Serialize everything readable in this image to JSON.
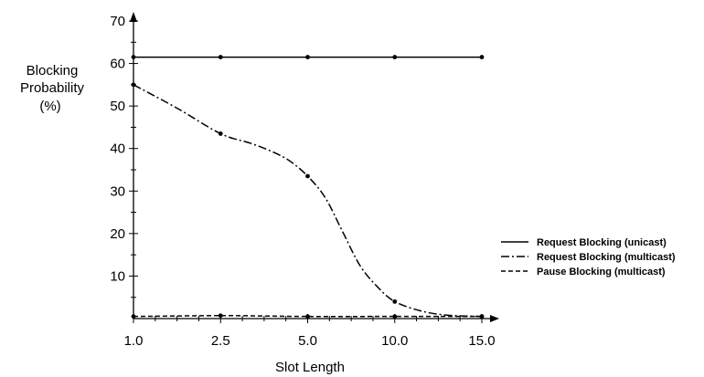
{
  "chart_data": {
    "type": "line",
    "ylabel_lines": [
      "Blocking",
      "Probability",
      "(%)"
    ],
    "xlabel": "Slot Length",
    "categories": [
      "1.0",
      "2.5",
      "5.0",
      "10.0",
      "15.0"
    ],
    "x_positions": [
      0,
      1,
      2,
      3,
      4
    ],
    "ylim": [
      0,
      70
    ],
    "yticks": [
      10,
      20,
      30,
      40,
      50,
      60,
      70
    ],
    "grid": false,
    "legend_position": "right",
    "series": [
      {
        "name": "Request Blocking (unicast)",
        "style": "solid",
        "values": [
          61.5,
          61.5,
          61.5,
          61.5,
          61.5
        ],
        "curve": [
          [
            0,
            61.5
          ],
          [
            4,
            61.5
          ]
        ]
      },
      {
        "name": "Request Blocking (multicast)",
        "style": "dashdot",
        "values": [
          55,
          43.5,
          33.5,
          4,
          0.5
        ],
        "curve": [
          [
            0,
            55
          ],
          [
            0.5,
            49.5
          ],
          [
            1,
            43.5
          ],
          [
            1.35,
            41.2
          ],
          [
            1.6,
            39.2
          ],
          [
            1.8,
            37
          ],
          [
            2,
            33.5
          ],
          [
            2.2,
            28.5
          ],
          [
            2.4,
            20.5
          ],
          [
            2.6,
            12.5
          ],
          [
            2.8,
            7.5
          ],
          [
            3,
            4
          ],
          [
            3.3,
            1.8
          ],
          [
            3.6,
            0.8
          ],
          [
            4,
            0.5
          ]
        ]
      },
      {
        "name": "Pause Blocking (multicast)",
        "style": "dashed",
        "values": [
          0.5,
          0.7,
          0.5,
          0.5,
          0.5
        ],
        "curve": [
          [
            0,
            0.5
          ],
          [
            1,
            0.7
          ],
          [
            1.5,
            0.6
          ],
          [
            2,
            0.5
          ],
          [
            3,
            0.5
          ],
          [
            4,
            0.5
          ]
        ]
      }
    ]
  }
}
